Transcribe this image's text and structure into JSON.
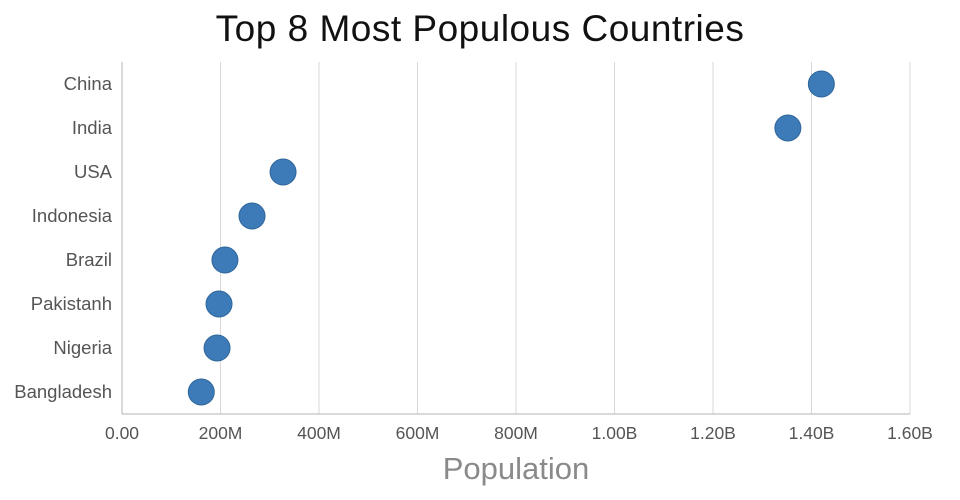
{
  "chart_data": {
    "type": "scatter",
    "title": "Top 8 Most Populous Countries",
    "xlabel": "Population",
    "ylabel": "",
    "categories": [
      "China",
      "India",
      "USA",
      "Indonesia",
      "Brazil",
      "Pakistanh",
      "Nigeria",
      "Bangladesh"
    ],
    "values": [
      1420000000,
      1352000000,
      327000000,
      264000000,
      209000000,
      197000000,
      193000000,
      161000000
    ],
    "xlim": [
      0,
      1600000000
    ],
    "xticks": [
      {
        "value": 0,
        "label": "0.00"
      },
      {
        "value": 200000000,
        "label": "200M"
      },
      {
        "value": 400000000,
        "label": "400M"
      },
      {
        "value": 600000000,
        "label": "600M"
      },
      {
        "value": 800000000,
        "label": "800M"
      },
      {
        "value": 1000000000,
        "label": "1.00B"
      },
      {
        "value": 1200000000,
        "label": "1.20B"
      },
      {
        "value": 1400000000,
        "label": "1.40B"
      },
      {
        "value": 1600000000,
        "label": "1.60B"
      }
    ],
    "grid": true,
    "legend": "none",
    "dot_color": "#3d7ab8",
    "dot_edge_color": "#2f6699",
    "grid_color": "#d8d8d8",
    "axis_color": "#b3b3b3",
    "tick_color": "#555555",
    "label_color": "#555555"
  }
}
